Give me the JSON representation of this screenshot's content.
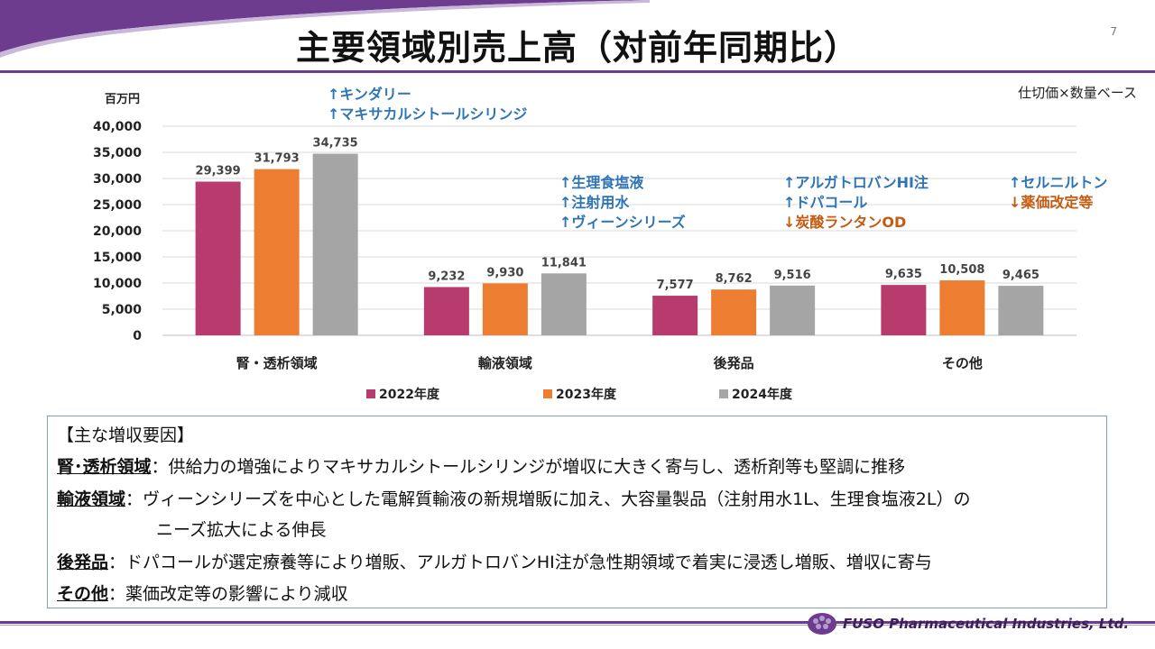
{
  "page": {
    "title": "主要領域別売上高（対前年同期比）",
    "page_number": "7",
    "basis": "仕切価×数量ベース"
  },
  "brand": {
    "accent": "#6d3c8e",
    "company": "FUSO Pharmaceutical Industries, Ltd."
  },
  "chart_data": {
    "type": "bar",
    "unit_label": "百万円",
    "categories": [
      "腎・透析領域",
      "輸液領域",
      "後発品",
      "その他"
    ],
    "series": [
      {
        "name": "2022年度",
        "color": "#b83b6e",
        "values": [
          29399,
          9232,
          7577,
          9635
        ],
        "labels": [
          "29,399",
          "9,232",
          "7,577",
          "9,635"
        ]
      },
      {
        "name": "2023年度",
        "color": "#ed7d31",
        "values": [
          31793,
          9930,
          8762,
          10508
        ],
        "labels": [
          "31,793",
          "9,930",
          "8,762",
          "10,508"
        ]
      },
      {
        "name": "2024年度",
        "color": "#a5a5a5",
        "values": [
          34735,
          11841,
          9516,
          9465
        ],
        "labels": [
          "34,735",
          "11,841",
          "9,516",
          "9,465"
        ]
      }
    ],
    "ylim": [
      0,
      40000
    ],
    "yticks": [
      0,
      5000,
      10000,
      15000,
      20000,
      25000,
      30000,
      35000,
      40000
    ],
    "ytick_labels": [
      "0",
      "5,000",
      "10,000",
      "15,000",
      "20,000",
      "25,000",
      "30,000",
      "35,000",
      "40,000"
    ],
    "grid": true,
    "legend_position": "bottom",
    "annotations": [
      {
        "category": "腎・透析領域",
        "lines": [
          {
            "text": "↑キンダリー",
            "color": "#2e75b6"
          },
          {
            "text": "↑マキサカルシトールシリンジ",
            "color": "#2e75b6"
          }
        ]
      },
      {
        "category": "輸液領域",
        "lines": [
          {
            "text": "↑生理食塩液",
            "color": "#2e75b6"
          },
          {
            "text": "↑注射用水",
            "color": "#2e75b6"
          },
          {
            "text": "↑ヴィーンシリーズ",
            "color": "#2e75b6"
          }
        ]
      },
      {
        "category": "後発品",
        "lines": [
          {
            "text": "↑アルガトロバンHI注",
            "color": "#2e75b6"
          },
          {
            "text": "↑ドパコール",
            "color": "#2e75b6"
          },
          {
            "text": "↓炭酸ランタンOD",
            "color": "#c55a11"
          }
        ]
      },
      {
        "category": "その他",
        "lines": [
          {
            "text": "↑セルニルトン",
            "color": "#2e75b6"
          },
          {
            "text": "↓薬価改定等",
            "color": "#c55a11"
          }
        ]
      }
    ]
  },
  "factors": {
    "heading": "【主な増収要因】",
    "items": [
      {
        "label": "腎･透析領域",
        "sep": "：",
        "text": "供給力の増強によりマキサカルシトールシリンジが増収に大きく寄与し、透析剤等も堅調に推移",
        "cont": ""
      },
      {
        "label": "輸液領域",
        "sep": "：",
        "text": "ヴィーンシリーズを中心とした電解質輸液の新規増販に加え、大容量製品（注射用水1L、生理食塩液2L）の",
        "cont": "ニーズ拡大による伸長"
      },
      {
        "label": "後発品",
        "sep": "：",
        "text": "ドパコールが選定療養等により増販、アルガトロバンHI注が急性期領域で着実に浸透し増販、増収に寄与",
        "cont": ""
      },
      {
        "label": "その他",
        "sep": "：",
        "text": "薬価改定等の影響により減収",
        "cont": ""
      }
    ]
  }
}
